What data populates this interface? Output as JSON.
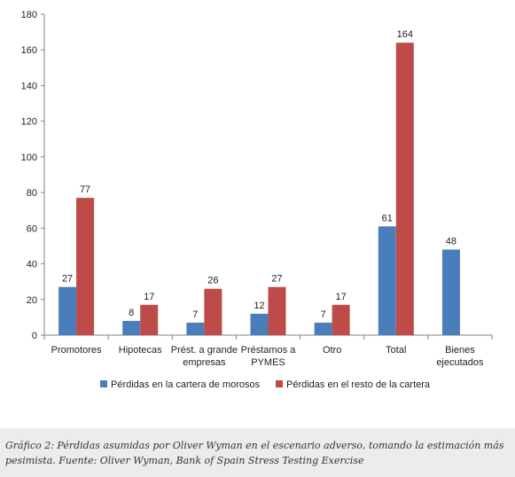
{
  "chart_data": {
    "type": "bar",
    "categories": [
      [
        "Promotores"
      ],
      [
        "Hipotecas"
      ],
      [
        "Prést. a grande",
        "empresas"
      ],
      [
        "Préstamos a",
        "PYMES"
      ],
      [
        "Otro"
      ],
      [
        "Total"
      ],
      [
        "Bienes",
        "ejecutados"
      ]
    ],
    "series": [
      {
        "name": "Pérdidas en la cartera de morosos",
        "color": "#4a7ebb",
        "values": [
          27,
          8,
          7,
          12,
          7,
          61,
          48
        ]
      },
      {
        "name": "Pérdidas en el resto de la cartera",
        "color": "#be4b48",
        "values": [
          77,
          17,
          26,
          27,
          17,
          164,
          null
        ]
      }
    ],
    "ylim": [
      0,
      180
    ],
    "yticks": [
      0,
      20,
      40,
      60,
      80,
      100,
      120,
      140,
      160,
      180
    ],
    "grid": false,
    "legend_position": "bottom",
    "data_labels": true
  },
  "caption": "Gráfico 2: Pérdidas asumidas por Oliver Wyman en el escenario adverso, tomando la estimación más pesimista. Fuente: Oliver Wyman, Bank of Spain Stress Testing Exercise"
}
